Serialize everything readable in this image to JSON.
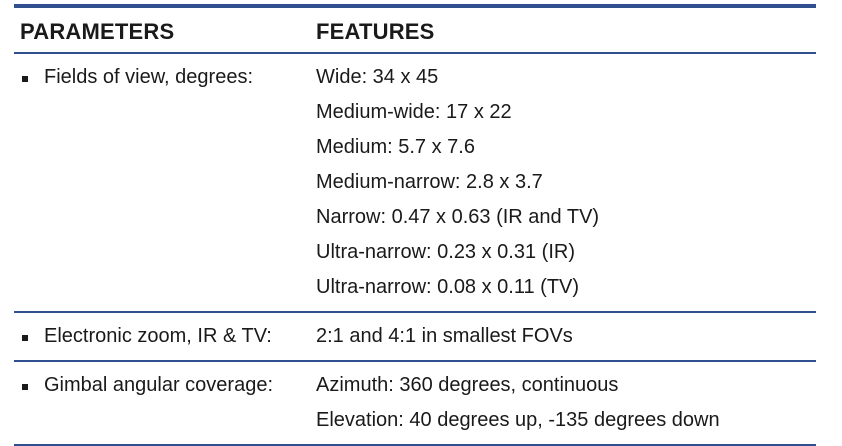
{
  "table": {
    "headers": {
      "parameters": "PARAMETERS",
      "features": "FEATURES"
    },
    "rows": [
      {
        "parameter": "Fields of view, degrees:",
        "features": [
          "Wide: 34 x 45",
          "Medium-wide: 17 x 22",
          "Medium: 5.7 x 7.6",
          "Medium-narrow: 2.8 x 3.7",
          "Narrow: 0.47 x 0.63 (IR and TV)",
          "Ultra-narrow: 0.23 x 0.31 (IR)",
          "Ultra-narrow: 0.08 x 0.11 (TV)"
        ]
      },
      {
        "parameter": "Electronic zoom, IR & TV:",
        "features": [
          "2:1 and 4:1 in smallest FOVs"
        ]
      },
      {
        "parameter": "Gimbal angular coverage:",
        "features": [
          "Azimuth: 360 degrees, continuous",
          "Elevation: 40 degrees up, -135 degrees down"
        ]
      }
    ]
  },
  "colors": {
    "rule": "#2f4f8f",
    "text": "#1a1a1a"
  }
}
